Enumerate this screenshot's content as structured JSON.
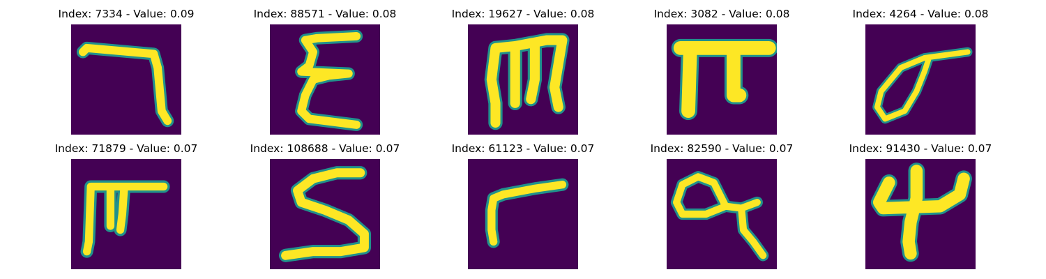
{
  "figure": {
    "background": "#ffffff",
    "colormap": {
      "name": "viridis",
      "low": "#440154",
      "mid": "#21918c",
      "high": "#fde725"
    },
    "panels": [
      {
        "title": "Index: 7334 - Value: 0.09",
        "index": 7334,
        "value": 0.09,
        "glyph": "seven-like-stroke"
      },
      {
        "title": "Index: 88571 - Value: 0.08",
        "index": 88571,
        "value": 0.08,
        "glyph": "epsilon-like-stroke"
      },
      {
        "title": "Index: 19627 - Value: 0.08",
        "index": 19627,
        "value": 0.08,
        "glyph": "m-like-stroke"
      },
      {
        "title": "Index: 3082 - Value: 0.08",
        "index": 3082,
        "value": 0.08,
        "glyph": "pi-like-stroke"
      },
      {
        "title": "Index: 4264 - Value: 0.08",
        "index": 4264,
        "value": 0.08,
        "glyph": "sigma-like-stroke"
      },
      {
        "title": "Index: 71879 - Value: 0.07",
        "index": 71879,
        "value": 0.07,
        "glyph": "pi-like-stroke-small"
      },
      {
        "title": "Index: 108688 - Value: 0.07",
        "index": 108688,
        "value": 0.07,
        "glyph": "s-like-stroke"
      },
      {
        "title": "Index: 61123 - Value: 0.07",
        "index": 61123,
        "value": 0.07,
        "glyph": "r-like-stroke"
      },
      {
        "title": "Index: 82590 - Value: 0.07",
        "index": 82590,
        "value": 0.07,
        "glyph": "alpha-like-stroke"
      },
      {
        "title": "Index: 91430 - Value: 0.07",
        "index": 91430,
        "value": 0.07,
        "glyph": "four-like-stroke"
      }
    ]
  }
}
